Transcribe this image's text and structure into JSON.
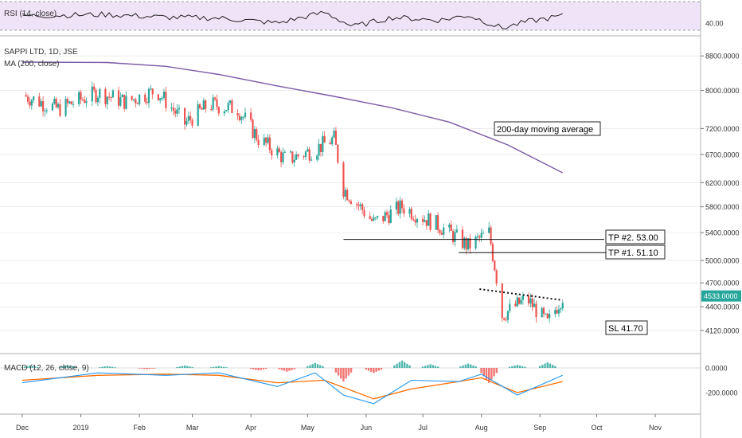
{
  "chart_data": {
    "type": "candlestick",
    "symbol_label": "SAPPI LTD, 1D, JSE",
    "ma_label": "MA (200, close)",
    "rsi_label": "RSI (14, close)",
    "macd_label": "MACD (12, 26, close, 9)",
    "price_axis": {
      "ticks": [
        "8800.0000",
        "8000.0000",
        "7200.0000",
        "6700.0000",
        "6200.0000",
        "5800.0000",
        "5400.0000",
        "5000.0000",
        "4700.0000",
        "4400.0000",
        "4120.0000"
      ],
      "tick_values": [
        8800,
        8000,
        7200,
        6700,
        6200,
        5800,
        5400,
        5000,
        4700,
        4400,
        4120
      ],
      "last_price_label": "4533.0000",
      "last_price": 4533
    },
    "rsi_axis": {
      "ticks": [
        "40.00"
      ],
      "tick_values": [
        40
      ],
      "upper_band": 70,
      "lower_band": 30
    },
    "macd_axis": {
      "ticks": [
        "0.0000",
        "-200.0000"
      ],
      "tick_values": [
        0,
        -200
      ]
    },
    "time_axis": [
      "Dec",
      "2019",
      "Feb",
      "Mar",
      "Apr",
      "May",
      "Jun",
      "Jul",
      "Aug",
      "Sep",
      "Oct",
      "Nov"
    ],
    "annotations": {
      "ma_note": "200-day moving average",
      "tp2": "TP #2. 53.00",
      "tp1": "TP #1. 51.10",
      "sl": "SL 41.70"
    },
    "levels": {
      "tp2": 5300,
      "tp1": 5110,
      "sl": 4170
    },
    "trendline": {
      "from": {
        "date": "2019-07-31",
        "value": 4620
      },
      "to": {
        "date": "2019-09-13",
        "value": 4480
      }
    },
    "ma200": [
      {
        "date": "2018-12-01",
        "value": 8650
      },
      {
        "date": "2019-01-15",
        "value": 8640
      },
      {
        "date": "2019-02-15",
        "value": 8550
      },
      {
        "date": "2019-03-15",
        "value": 8360
      },
      {
        "date": "2019-04-15",
        "value": 8100
      },
      {
        "date": "2019-05-15",
        "value": 7870
      },
      {
        "date": "2019-06-15",
        "value": 7620
      },
      {
        "date": "2019-07-15",
        "value": 7330
      },
      {
        "date": "2019-08-15",
        "value": 6880
      },
      {
        "date": "2019-09-13",
        "value": 6370
      }
    ],
    "price_path": [
      {
        "date": "2018-12-01",
        "value": 7900
      },
      {
        "date": "2018-12-20",
        "value": 7600
      },
      {
        "date": "2019-01-10",
        "value": 7950
      },
      {
        "date": "2019-01-25",
        "value": 7750
      },
      {
        "date": "2019-02-10",
        "value": 8000
      },
      {
        "date": "2019-02-25",
        "value": 7300
      },
      {
        "date": "2019-03-10",
        "value": 7700
      },
      {
        "date": "2019-03-25",
        "value": 7600
      },
      {
        "date": "2019-04-05",
        "value": 7000
      },
      {
        "date": "2019-04-20",
        "value": 6600
      },
      {
        "date": "2019-05-05",
        "value": 6800
      },
      {
        "date": "2019-05-15",
        "value": 7000
      },
      {
        "date": "2019-05-20",
        "value": 6100
      },
      {
        "date": "2019-06-05",
        "value": 5550
      },
      {
        "date": "2019-06-20",
        "value": 5800
      },
      {
        "date": "2019-07-10",
        "value": 5500
      },
      {
        "date": "2019-07-25",
        "value": 5200
      },
      {
        "date": "2019-08-05",
        "value": 5400
      },
      {
        "date": "2019-08-12",
        "value": 4300
      },
      {
        "date": "2019-08-25",
        "value": 4500
      },
      {
        "date": "2019-09-05",
        "value": 4200
      },
      {
        "date": "2019-09-13",
        "value": 4533
      }
    ],
    "rsi_path": [
      {
        "date": "2018-12-01",
        "value": 50
      },
      {
        "date": "2019-01-15",
        "value": 52
      },
      {
        "date": "2019-02-15",
        "value": 48
      },
      {
        "date": "2019-03-15",
        "value": 47
      },
      {
        "date": "2019-04-15",
        "value": 40
      },
      {
        "date": "2019-05-10",
        "value": 55
      },
      {
        "date": "2019-05-25",
        "value": 35
      },
      {
        "date": "2019-06-15",
        "value": 48
      },
      {
        "date": "2019-07-10",
        "value": 44
      },
      {
        "date": "2019-07-25",
        "value": 51
      },
      {
        "date": "2019-08-12",
        "value": 33
      },
      {
        "date": "2019-08-25",
        "value": 42
      },
      {
        "date": "2019-09-13",
        "value": 50
      }
    ],
    "macd_line": [
      {
        "date": "2018-12-01",
        "value": -120
      },
      {
        "date": "2019-01-10",
        "value": -40
      },
      {
        "date": "2019-02-15",
        "value": -60
      },
      {
        "date": "2019-03-15",
        "value": -40
      },
      {
        "date": "2019-04-15",
        "value": -150
      },
      {
        "date": "2019-05-05",
        "value": -40
      },
      {
        "date": "2019-05-20",
        "value": -220
      },
      {
        "date": "2019-06-05",
        "value": -290
      },
      {
        "date": "2019-06-25",
        "value": -100
      },
      {
        "date": "2019-07-20",
        "value": -110
      },
      {
        "date": "2019-08-01",
        "value": -50
      },
      {
        "date": "2019-08-20",
        "value": -220
      },
      {
        "date": "2019-09-13",
        "value": -60
      }
    ],
    "signal_line": [
      {
        "date": "2018-12-01",
        "value": -100
      },
      {
        "date": "2019-01-10",
        "value": -60
      },
      {
        "date": "2019-02-15",
        "value": -50
      },
      {
        "date": "2019-03-15",
        "value": -60
      },
      {
        "date": "2019-04-15",
        "value": -120
      },
      {
        "date": "2019-05-10",
        "value": -100
      },
      {
        "date": "2019-06-05",
        "value": -250
      },
      {
        "date": "2019-06-25",
        "value": -170
      },
      {
        "date": "2019-07-20",
        "value": -110
      },
      {
        "date": "2019-08-01",
        "value": -80
      },
      {
        "date": "2019-08-20",
        "value": -200
      },
      {
        "date": "2019-09-13",
        "value": -110
      }
    ],
    "macd_histogram": [
      {
        "date": "2018-12-05",
        "value": 20
      },
      {
        "date": "2018-12-25",
        "value": 25
      },
      {
        "date": "2019-01-15",
        "value": 15
      },
      {
        "date": "2019-02-05",
        "value": -10
      },
      {
        "date": "2019-02-25",
        "value": 20
      },
      {
        "date": "2019-03-15",
        "value": 15
      },
      {
        "date": "2019-04-05",
        "value": -20
      },
      {
        "date": "2019-04-20",
        "value": -30
      },
      {
        "date": "2019-05-05",
        "value": 40
      },
      {
        "date": "2019-05-20",
        "value": -110
      },
      {
        "date": "2019-06-05",
        "value": -40
      },
      {
        "date": "2019-06-20",
        "value": 60
      },
      {
        "date": "2019-07-05",
        "value": 30
      },
      {
        "date": "2019-07-25",
        "value": 35
      },
      {
        "date": "2019-08-05",
        "value": -120
      },
      {
        "date": "2019-08-20",
        "value": 25
      },
      {
        "date": "2019-09-05",
        "value": 45
      }
    ]
  },
  "colors": {
    "bull": "#26a69a",
    "bear": "#ef5350",
    "ma": "#7b5aa6",
    "rsi_band": "#efe3f7",
    "macd": "#2196f3",
    "signal": "#ff6d00",
    "grid": "#e0e0e0",
    "last_price_bg": "#26a69a"
  }
}
